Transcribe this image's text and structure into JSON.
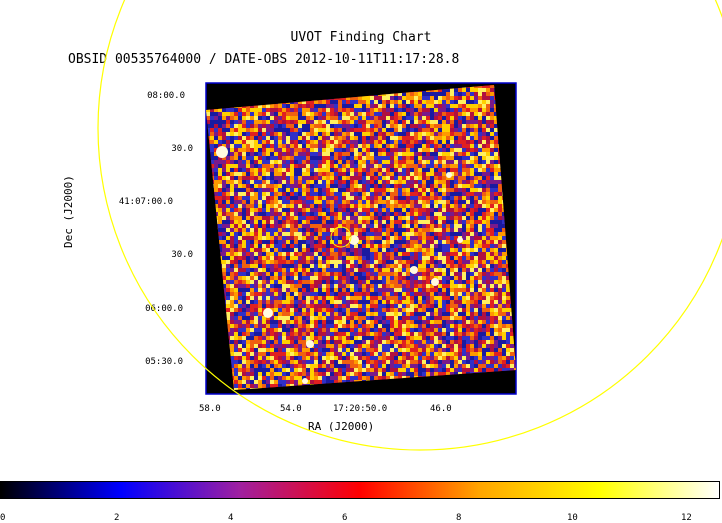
{
  "figure": {
    "title": "UVOT Finding Chart",
    "subtitle": "OBSID 00535764000 / DATE-OBS 2012-10-11T11:17:28.8"
  },
  "axes": {
    "dec": {
      "title": "Dec (J2000)",
      "ticks": [
        "08:00.0",
        "30.0",
        "41:07:00.0",
        "30.0",
        "06:00.0",
        "05:30.0"
      ]
    },
    "ra": {
      "title": "RA (J2000)",
      "ticks": [
        "58.0",
        "54.0",
        "17:20:50.0",
        "46.0"
      ]
    }
  },
  "colorbar": {
    "ticks": [
      "0",
      "2",
      "4",
      "6",
      "8",
      "10",
      "12"
    ],
    "range": [
      0,
      12.5
    ],
    "colors": [
      "#000000",
      "#0000ff",
      "#a020a0",
      "#ff0000",
      "#ffa500",
      "#ffff00",
      "#ffffff"
    ]
  },
  "overlay": {
    "large_circle_color": "#ffff00",
    "target_circle_color": "#ffff00"
  },
  "image": {
    "frame_color": "#0000cc",
    "background_color": "#000000"
  }
}
